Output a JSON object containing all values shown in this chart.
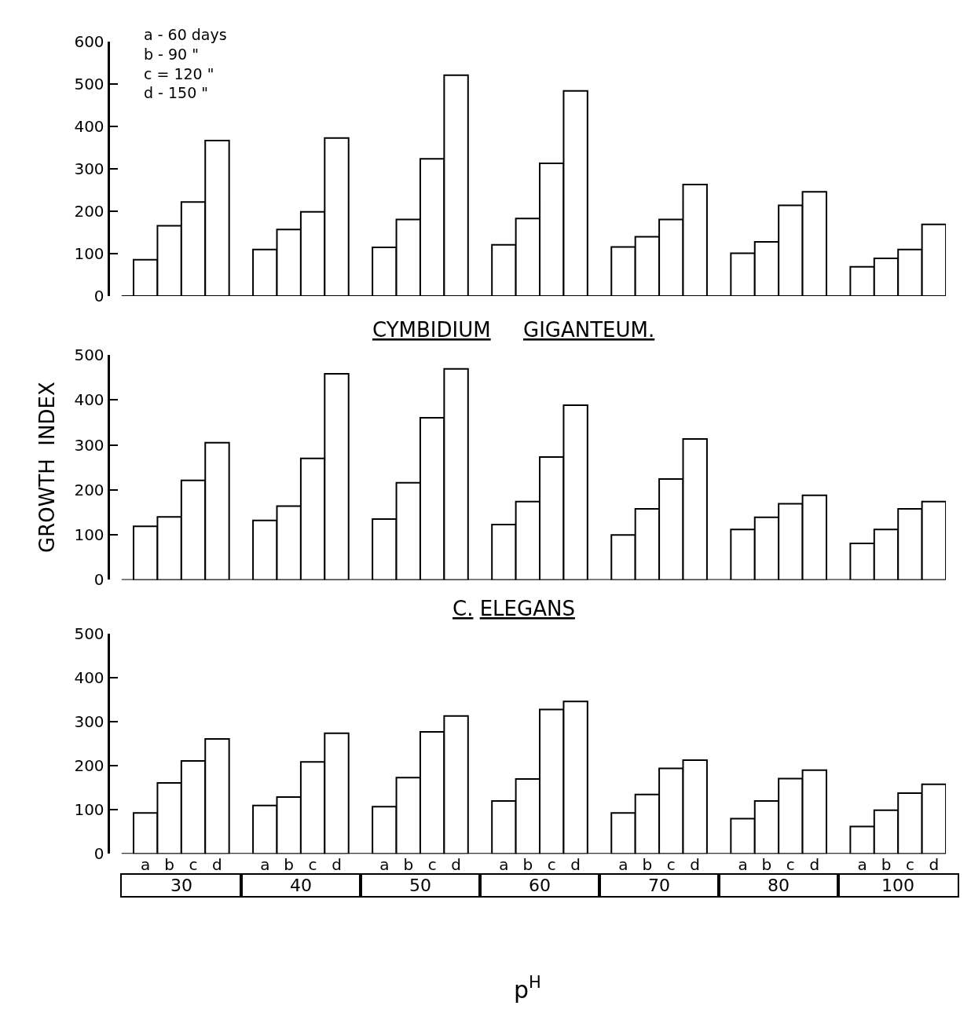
{
  "chart_data": [
    {
      "type": "bar",
      "categories": [
        "30",
        "40",
        "50",
        "60",
        "70",
        "80",
        "100"
      ],
      "series": [
        {
          "color": "#ffffff",
          "values": [
            86,
            110,
            115,
            121,
            116,
            101,
            69
          ]
        },
        {
          "color": "#ffffff",
          "values": [
            166,
            157,
            181,
            183,
            140,
            128,
            89
          ]
        },
        {
          "color": "#ffffff",
          "values": [
            222,
            199,
            324,
            313,
            181,
            214,
            110
          ]
        },
        {
          "color": "#ffffff",
          "values": [
            367,
            373,
            521,
            484,
            263,
            246,
            169
          ]
        }
      ],
      "annotations": [
        "a - 60 days",
        "b - 90 \"",
        "c = 120 \"",
        "d - 150 \""
      ],
      "ylim": [
        0,
        600
      ],
      "yticks": [
        0,
        100,
        200,
        300,
        400,
        500,
        600
      ],
      "tick_labels": "y"
    },
    {
      "type": "bar",
      "title": "CYMBIDIUM     GIGANTEUM.",
      "ylabel": "GROWTH  INDEX",
      "categories": [
        "30",
        "40",
        "50",
        "60",
        "70",
        "80",
        "100"
      ],
      "series": [
        {
          "color": "#ffffff",
          "values": [
            119,
            132,
            135,
            123,
            100,
            112,
            81
          ]
        },
        {
          "color": "#ffffff",
          "values": [
            140,
            164,
            216,
            174,
            158,
            139,
            112
          ]
        },
        {
          "color": "#ffffff",
          "values": [
            221,
            270,
            360,
            273,
            224,
            169,
            158
          ]
        },
        {
          "color": "#ffffff",
          "values": [
            305,
            458,
            469,
            388,
            313,
            188,
            174
          ]
        }
      ],
      "ylim": [
        0,
        500
      ],
      "yticks": [
        0,
        100,
        200,
        300,
        400,
        500
      ],
      "tick_labels": "y"
    },
    {
      "type": "bar",
      "title": "C. ELEGANS",
      "xlabel": "p$^{H}$",
      "categories": [
        "30",
        "40",
        "50",
        "60",
        "70",
        "80",
        "100"
      ],
      "series": [
        {
          "name": "a",
          "color": "#ffffff",
          "values": [
            93,
            110,
            107,
            120,
            93,
            80,
            62
          ]
        },
        {
          "name": "b",
          "color": "#ffffff",
          "values": [
            161,
            129,
            173,
            170,
            135,
            120,
            99
          ]
        },
        {
          "name": "c",
          "color": "#ffffff",
          "values": [
            211,
            209,
            277,
            328,
            194,
            171,
            138
          ]
        },
        {
          "name": "d",
          "color": "#ffffff",
          "values": [
            261,
            274,
            313,
            346,
            213,
            190,
            158
          ]
        }
      ],
      "ylim": [
        0,
        500
      ],
      "yticks": [
        0,
        100,
        200,
        300,
        400,
        500
      ]
    }
  ]
}
